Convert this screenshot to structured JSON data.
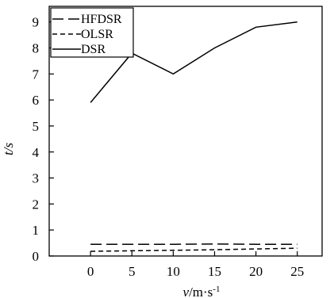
{
  "chart_data": {
    "type": "line",
    "x": [
      0,
      5,
      10,
      15,
      20,
      25
    ],
    "series": [
      {
        "name": "HFDSR",
        "values": [
          0.45,
          0.45,
          0.45,
          0.46,
          0.45,
          0.45
        ],
        "dash": "long"
      },
      {
        "name": "OLSR",
        "values": [
          0.18,
          0.2,
          0.22,
          0.24,
          0.27,
          0.3
        ],
        "dash": "short"
      },
      {
        "name": "DSR",
        "values": [
          5.9,
          7.8,
          7.0,
          8.0,
          8.8,
          9.0
        ],
        "dash": "solid"
      }
    ],
    "xlim": [
      -5,
      28
    ],
    "ylim": [
      0,
      9.6
    ],
    "xticks": [
      0,
      5,
      10,
      15,
      20,
      25
    ],
    "yticks": [
      0,
      1,
      2,
      3,
      4,
      5,
      6,
      7,
      8,
      9
    ],
    "ylabel": "t/s",
    "xlabel": "v/m·s",
    "xlabel_sup": "-1",
    "legend": "top-left",
    "grid": false
  }
}
